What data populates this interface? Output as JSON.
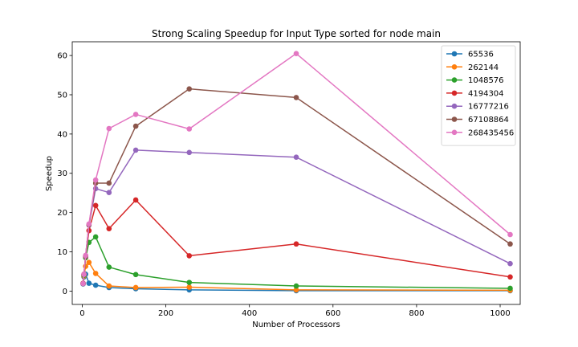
{
  "chart_data": {
    "type": "line",
    "title": "Strong Scaling Speedup for Input Type sorted for node main",
    "xlabel": "Number of Processors",
    "ylabel": "Speedup",
    "xlim": [
      -24,
      1048
    ],
    "ylim": [
      -3.4,
      63.5
    ],
    "xticks": [
      0,
      200,
      400,
      600,
      800,
      1000
    ],
    "yticks": [
      0,
      10,
      20,
      30,
      40,
      50,
      60
    ],
    "legend_position": "top-right",
    "grid": false,
    "x": [
      2,
      4,
      8,
      16,
      32,
      64,
      128,
      256,
      512,
      1024
    ],
    "series": [
      {
        "name": "65536",
        "color": "#1f77b4",
        "values": [
          1.8,
          3.6,
          4.3,
          2.0,
          1.5,
          0.9,
          0.6,
          0.3,
          0.1,
          0.1
        ]
      },
      {
        "name": "262144",
        "color": "#ff7f0e",
        "values": [
          1.9,
          3.8,
          6.3,
          7.3,
          4.5,
          1.3,
          0.9,
          1.0,
          0.3,
          0.2
        ]
      },
      {
        "name": "1048576",
        "color": "#2ca02c",
        "values": [
          1.9,
          4.0,
          8.5,
          12.4,
          13.8,
          6.1,
          4.2,
          2.2,
          1.3,
          0.7
        ]
      },
      {
        "name": "4194304",
        "color": "#d62728",
        "values": [
          2.0,
          4.2,
          8.8,
          15.4,
          21.8,
          15.9,
          23.2,
          9.0,
          12.0,
          3.6
        ]
      },
      {
        "name": "16777216",
        "color": "#9467bd",
        "values": [
          1.9,
          4.2,
          8.9,
          16.8,
          26.1,
          25.1,
          35.9,
          35.3,
          34.1,
          7.0
        ]
      },
      {
        "name": "67108864",
        "color": "#8c564b",
        "values": [
          1.9,
          4.3,
          9.0,
          16.9,
          27.5,
          27.5,
          42.0,
          51.5,
          49.3,
          12.0
        ]
      },
      {
        "name": "268435456",
        "color": "#e377c2",
        "values": [
          1.9,
          4.3,
          9.1,
          17.1,
          28.3,
          41.4,
          45.0,
          41.3,
          60.5,
          14.4
        ]
      }
    ]
  }
}
